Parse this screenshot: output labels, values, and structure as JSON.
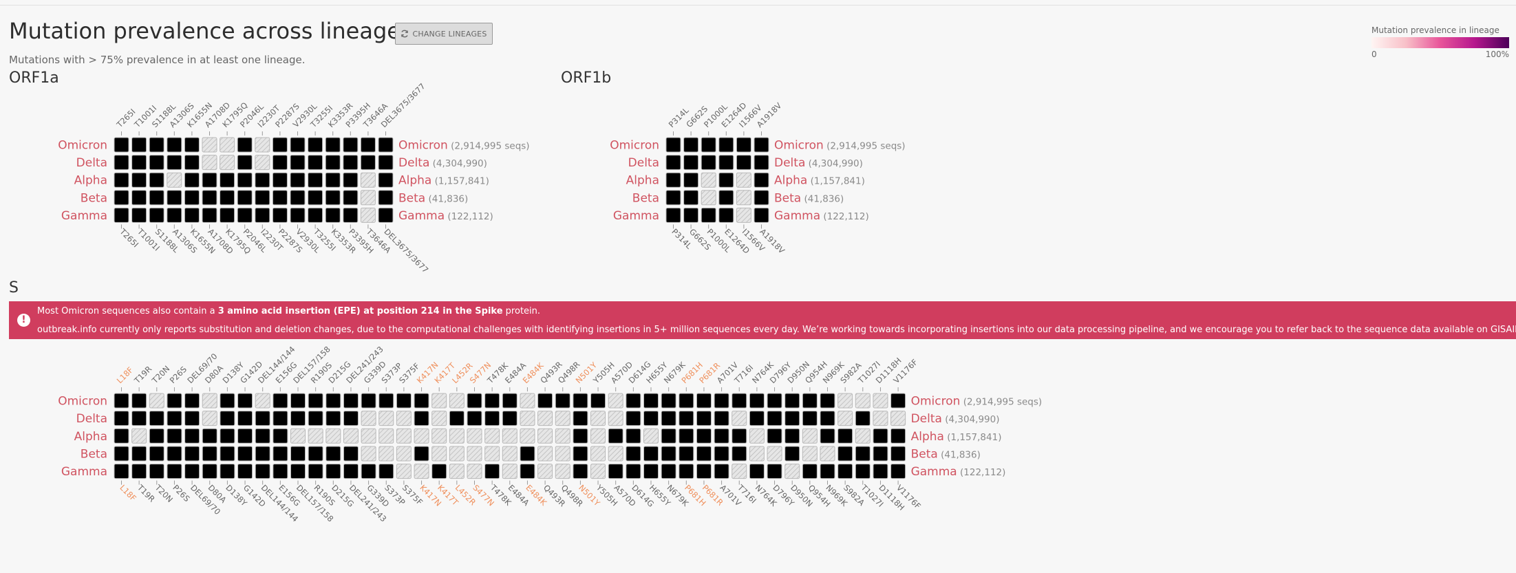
{
  "page": {
    "title": "Mutation prevalence across lineages",
    "change_button": "CHANGE LINEAGES",
    "subtitle": "Mutations with > 75% prevalence in at least one lineage."
  },
  "legend": {
    "title": "Mutation prevalence in lineage",
    "min_label": "0",
    "max_label": "100%"
  },
  "banner": {
    "line1_pre": "Most Omicron sequences also contain a ",
    "line1_bold": "3 amino acid insertion (EPE) at position 214 in the Spike",
    "line1_post": " protein.",
    "line2": "outbreak.info currently only reports substitution and deletion changes, due to the computational challenges with identifying insertions in 5+ million sequences every day. We’re working towards incorporating insertions into our data processing pipeline, and we encourage you to refer back to the sequence data available on GISAID for more information on insertions."
  },
  "colors": {
    "lineage_label": "#d05360",
    "mutation_highlight": "#ef8f5b",
    "count_text": "#8a8a8a",
    "high": "#4c0059"
  },
  "chart_data": [
    {
      "type": "heatmap",
      "title": "ORF1a",
      "value_scale": [
        0,
        100
      ],
      "lineages": [
        {
          "name": "Omicron",
          "count": "(2,914,995 seqs)"
        },
        {
          "name": "Delta",
          "count": "(4,304,990)"
        },
        {
          "name": "Alpha",
          "count": "(1,157,841)"
        },
        {
          "name": "Beta",
          "count": "(41,836)"
        },
        {
          "name": "Gamma",
          "count": "(122,112)"
        }
      ],
      "mutations": [
        "T265I",
        "T1001I",
        "S1188L",
        "A1306S",
        "K1655N",
        "A1708D",
        "K1795Q",
        "P2046L",
        "I2230T",
        "P2287S",
        "V2930L",
        "T3255I",
        "K3353R",
        "P3395H",
        "T3646A",
        "DEL3675/3677"
      ],
      "highlighted": [],
      "values": [
        [
          1,
          1,
          1,
          1,
          1,
          null,
          null,
          1,
          null,
          1,
          1,
          95,
          1,
          98,
          2,
          30
        ],
        [
          1,
          1,
          1,
          80,
          1,
          null,
          null,
          85,
          null,
          88,
          92,
          92,
          1,
          90,
          2,
          2
        ],
        [
          2,
          98,
          2,
          null,
          2,
          96,
          1,
          1,
          96,
          1,
          1,
          2,
          1,
          1,
          null,
          98
        ],
        [
          99,
          1,
          1,
          1,
          94,
          1,
          1,
          1,
          1,
          1,
          1,
          1,
          93,
          1,
          null,
          96
        ],
        [
          2,
          1,
          98,
          1,
          1,
          1,
          97,
          1,
          1,
          1,
          1,
          1,
          1,
          1,
          null,
          98
        ]
      ]
    },
    {
      "type": "heatmap",
      "title": "ORF1b",
      "value_scale": [
        0,
        100
      ],
      "lineages": [
        {
          "name": "Omicron",
          "count": "(2,914,995 seqs)"
        },
        {
          "name": "Delta",
          "count": "(4,304,990)"
        },
        {
          "name": "Alpha",
          "count": "(1,157,841)"
        },
        {
          "name": "Beta",
          "count": "(41,836)"
        },
        {
          "name": "Gamma",
          "count": "(122,112)"
        }
      ],
      "mutations": [
        "P314L",
        "G662S",
        "P1000L",
        "E1264D",
        "I1566V",
        "A1918V"
      ],
      "highlighted": [],
      "values": [
        [
          98,
          1,
          1,
          1,
          95,
          1
        ],
        [
          98,
          96,
          97,
          1,
          1,
          88
        ],
        [
          98,
          1,
          null,
          1,
          null,
          1
        ],
        [
          95,
          1,
          null,
          1,
          null,
          1
        ],
        [
          98,
          1,
          1,
          97,
          null,
          1
        ]
      ]
    },
    {
      "type": "heatmap",
      "title": "S",
      "value_scale": [
        0,
        100
      ],
      "lineages": [
        {
          "name": "Omicron",
          "count": "(2,914,995 seqs)"
        },
        {
          "name": "Delta",
          "count": "(4,304,990)"
        },
        {
          "name": "Alpha",
          "count": "(1,157,841)"
        },
        {
          "name": "Beta",
          "count": "(41,836)"
        },
        {
          "name": "Gamma",
          "count": "(122,112)"
        }
      ],
      "mutations": [
        "L18F",
        "T19R",
        "T20N",
        "P26S",
        "DEL69/70",
        "D80A",
        "D138Y",
        "G142D",
        "DEL144/144",
        "E156G",
        "DEL157/158",
        "R190S",
        "D215G",
        "DEL241/243",
        "G339D",
        "S373P",
        "S375F",
        "K417N",
        "K417T",
        "L452R",
        "S477N",
        "T478K",
        "E484A",
        "E484K",
        "Q493R",
        "Q498R",
        "N501Y",
        "Y505H",
        "A570D",
        "D614G",
        "H655Y",
        "N679K",
        "P681H",
        "P681R",
        "A701V",
        "T716I",
        "N764K",
        "D796Y",
        "D950N",
        "Q954H",
        "N969K",
        "S982A",
        "T1027I",
        "D1118H",
        "V1176F"
      ],
      "highlighted": [
        "L18F",
        "K417N",
        "K417T",
        "L452R",
        "S477N",
        "E484K",
        "N501Y",
        "P681H",
        "P681R"
      ],
      "values": [
        [
          1,
          1,
          null,
          1,
          70,
          null,
          1,
          95,
          null,
          1,
          1,
          1,
          1,
          97,
          97,
          97,
          90,
          2,
          null,
          null,
          97,
          97,
          97,
          null,
          95,
          95,
          95,
          95,
          null,
          98,
          97,
          97,
          97,
          1,
          8,
          1,
          97,
          97,
          1,
          97,
          97,
          null,
          null,
          null,
          1
        ],
        [
          1,
          97,
          1,
          1,
          1,
          null,
          1,
          75,
          1,
          97,
          97,
          1,
          1,
          1,
          null,
          null,
          null,
          1,
          null,
          96,
          1,
          97,
          1,
          null,
          null,
          null,
          1,
          null,
          null,
          98,
          1,
          1,
          1,
          97,
          1,
          null,
          1,
          1,
          97,
          1,
          1,
          null,
          1,
          null,
          null
        ],
        [
          1,
          null,
          1,
          1,
          97,
          1,
          1,
          1,
          97,
          1,
          null,
          null,
          null,
          null,
          null,
          null,
          null,
          null,
          null,
          null,
          null,
          null,
          null,
          null,
          null,
          null,
          97,
          null,
          96,
          98,
          null,
          1,
          97,
          1,
          1,
          97,
          null,
          1,
          1,
          null,
          97,
          1,
          null,
          97,
          1
        ],
        [
          40,
          1,
          1,
          1,
          1,
          97,
          1,
          1,
          1,
          1,
          1,
          97,
          97,
          1,
          null,
          null,
          null,
          95,
          null,
          null,
          null,
          null,
          null,
          95,
          null,
          null,
          97,
          null,
          null,
          98,
          1,
          1,
          1,
          1,
          90,
          1,
          null,
          null,
          1,
          null,
          null,
          1,
          1,
          1,
          1
        ],
        [
          97,
          1,
          97,
          97,
          1,
          1,
          97,
          1,
          1,
          1,
          1,
          97,
          1,
          1,
          1,
          1,
          null,
          null,
          97,
          null,
          null,
          1,
          null,
          97,
          null,
          null,
          97,
          null,
          1,
          98,
          97,
          1,
          1,
          1,
          1,
          null,
          1,
          1,
          null,
          1,
          1,
          1,
          97,
          1,
          97
        ]
      ]
    }
  ]
}
